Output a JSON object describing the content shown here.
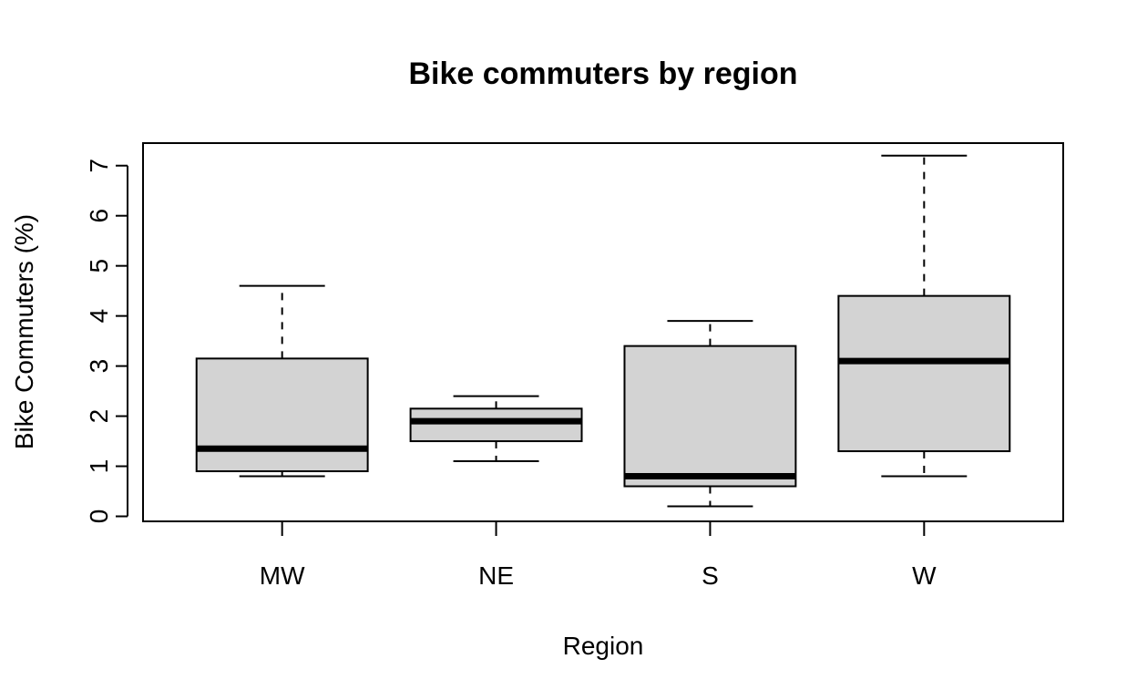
{
  "chart_data": {
    "type": "boxplot",
    "title": "Bike commuters by region",
    "xlabel": "Region",
    "ylabel": "Bike Commuters (%)",
    "ylim": [
      -0.1,
      7.45
    ],
    "yticks": [
      0,
      1,
      2,
      3,
      4,
      5,
      6,
      7
    ],
    "ytick_labels": [
      "0",
      "1",
      "2",
      "3",
      "4",
      "5",
      "6",
      "7"
    ],
    "categories": [
      "MW",
      "NE",
      "S",
      "W"
    ],
    "boxes": [
      {
        "category": "MW",
        "min": 0.8,
        "q1": 0.9,
        "median": 1.35,
        "q3": 3.15,
        "max": 4.6
      },
      {
        "category": "NE",
        "min": 1.1,
        "q1": 1.5,
        "median": 1.9,
        "q3": 2.15,
        "max": 2.4
      },
      {
        "category": "S",
        "min": 0.2,
        "q1": 0.6,
        "median": 0.8,
        "q3": 3.4,
        "max": 3.9
      },
      {
        "category": "W",
        "min": 0.8,
        "q1": 1.3,
        "median": 3.1,
        "q3": 4.4,
        "max": 7.2
      }
    ],
    "box_fill": "#d3d3d3",
    "line_color": "#000000",
    "grid": false,
    "legend": "none"
  }
}
